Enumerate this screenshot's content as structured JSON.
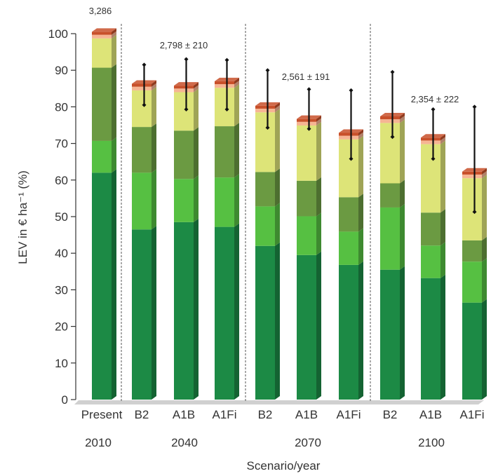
{
  "chart_data": {
    "type": "bar",
    "stacked": true,
    "ylabel": "LEV in € ha⁻¹ (%)",
    "xlabel": "Scenario/year",
    "ylim": [
      0,
      100
    ],
    "yticks": [
      0,
      10,
      20,
      30,
      40,
      50,
      60,
      70,
      80,
      90,
      100
    ],
    "categories": [
      "Present",
      "B2",
      "A1B",
      "A1Fi",
      "B2",
      "A1B",
      "A1Fi",
      "B2",
      "A1B",
      "A1Fi"
    ],
    "groups": [
      {
        "label": "2010",
        "categories": [
          "Present"
        ]
      },
      {
        "label": "2040",
        "categories": [
          "B2",
          "A1B",
          "A1Fi"
        ]
      },
      {
        "label": "2070",
        "categories": [
          "B2",
          "A1B",
          "A1Fi"
        ]
      },
      {
        "label": "2100",
        "categories": [
          "B2",
          "A1B",
          "A1Fi"
        ]
      }
    ],
    "series": [
      {
        "color": "#1c8a45",
        "values": [
          62,
          46.5,
          48.5,
          47.2,
          42,
          39.5,
          36.8,
          35.5,
          33.2,
          26.5
        ]
      },
      {
        "color": "#56c042",
        "values": [
          8.7,
          15.5,
          11.8,
          13.5,
          10.8,
          10.6,
          9.1,
          17,
          8.9,
          11.2
        ]
      },
      {
        "color": "#6b9a42",
        "values": [
          20,
          12.5,
          13.2,
          14,
          9.4,
          9.7,
          9.4,
          6.6,
          9,
          5.8
        ]
      },
      {
        "color": "#dde478",
        "values": [
          8,
          10,
          10.5,
          10.5,
          16.3,
          15.1,
          15.8,
          16.5,
          18.7,
          17
        ]
      },
      {
        "color": "#f6b593",
        "values": [
          1,
          1,
          1,
          1,
          1,
          1,
          1,
          1,
          1,
          1
        ]
      },
      {
        "color": "#c8502a",
        "values": [
          0.8,
          0.8,
          0.8,
          0.8,
          0.8,
          0.8,
          0.8,
          0.8,
          0.8,
          0.8
        ]
      }
    ],
    "error_bars": [
      null,
      {
        "center": 86,
        "low": 80.5,
        "high": 91.5
      },
      {
        "center": 86,
        "low": 79.3,
        "high": 93
      },
      {
        "center": 86,
        "low": 79.3,
        "high": 92.8
      },
      {
        "center": 82,
        "low": 74.3,
        "high": 90
      },
      {
        "center": 79.5,
        "low": 74,
        "high": 84.8
      },
      {
        "center": 75,
        "low": 65.8,
        "high": 84.5
      },
      {
        "center": 80.5,
        "low": 71.8,
        "high": 89.5
      },
      {
        "center": 72.5,
        "low": 65.8,
        "high": 79.3
      },
      {
        "center": 65.5,
        "low": 51.3,
        "high": 80
      }
    ],
    "annotations": [
      {
        "bar": 0,
        "text": "3,286"
      },
      {
        "bar": 2,
        "text": "2,798 ± 210"
      },
      {
        "bar": 5,
        "text": "2,561 ± 191"
      },
      {
        "bar": 8,
        "text": "2,354 ± 222"
      }
    ]
  }
}
